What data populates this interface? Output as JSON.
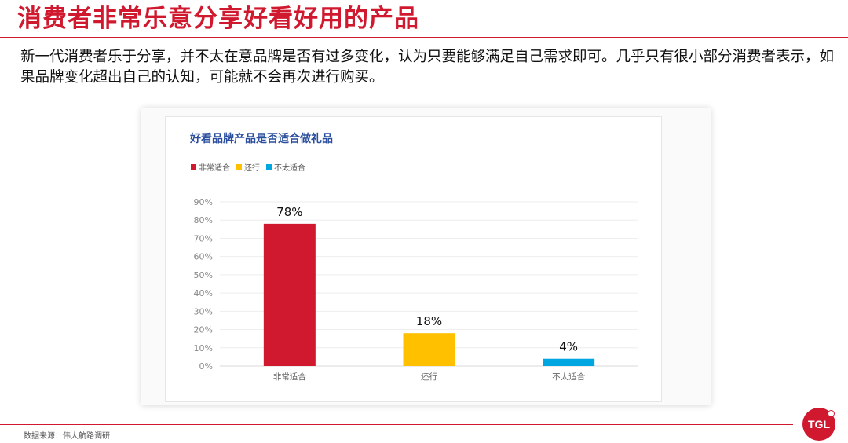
{
  "header": {
    "title": "消费者非常乐意分享好看好用的产品",
    "intro": "新一代消费者乐于分享，并不太在意品牌是否有过多变化，认为只要能够满足自己需求即可。几乎只有很小部分消费者表示，如果品牌变化超出自己的认知，可能就不会再次进行购买。"
  },
  "chart_data": {
    "type": "bar",
    "title": "好看品牌产品是否适合做礼品",
    "categories": [
      "非常适合",
      "还行",
      "不太适合"
    ],
    "values": [
      78,
      18,
      4
    ],
    "value_labels": [
      "78%",
      "18%",
      "4%"
    ],
    "colors": [
      "#d0192f",
      "#ffc000",
      "#00a6e0"
    ],
    "ylim": [
      0,
      90
    ],
    "yticks": [
      "0%",
      "10%",
      "20%",
      "30%",
      "40%",
      "50%",
      "60%",
      "70%",
      "80%",
      "90%"
    ],
    "legend": [
      "非常适合",
      "还行",
      "不太适合"
    ],
    "legend_position": "top-left",
    "grid": true
  },
  "footer": {
    "source": "数据来源：伟大航路调研",
    "logo_text": "TGL"
  }
}
